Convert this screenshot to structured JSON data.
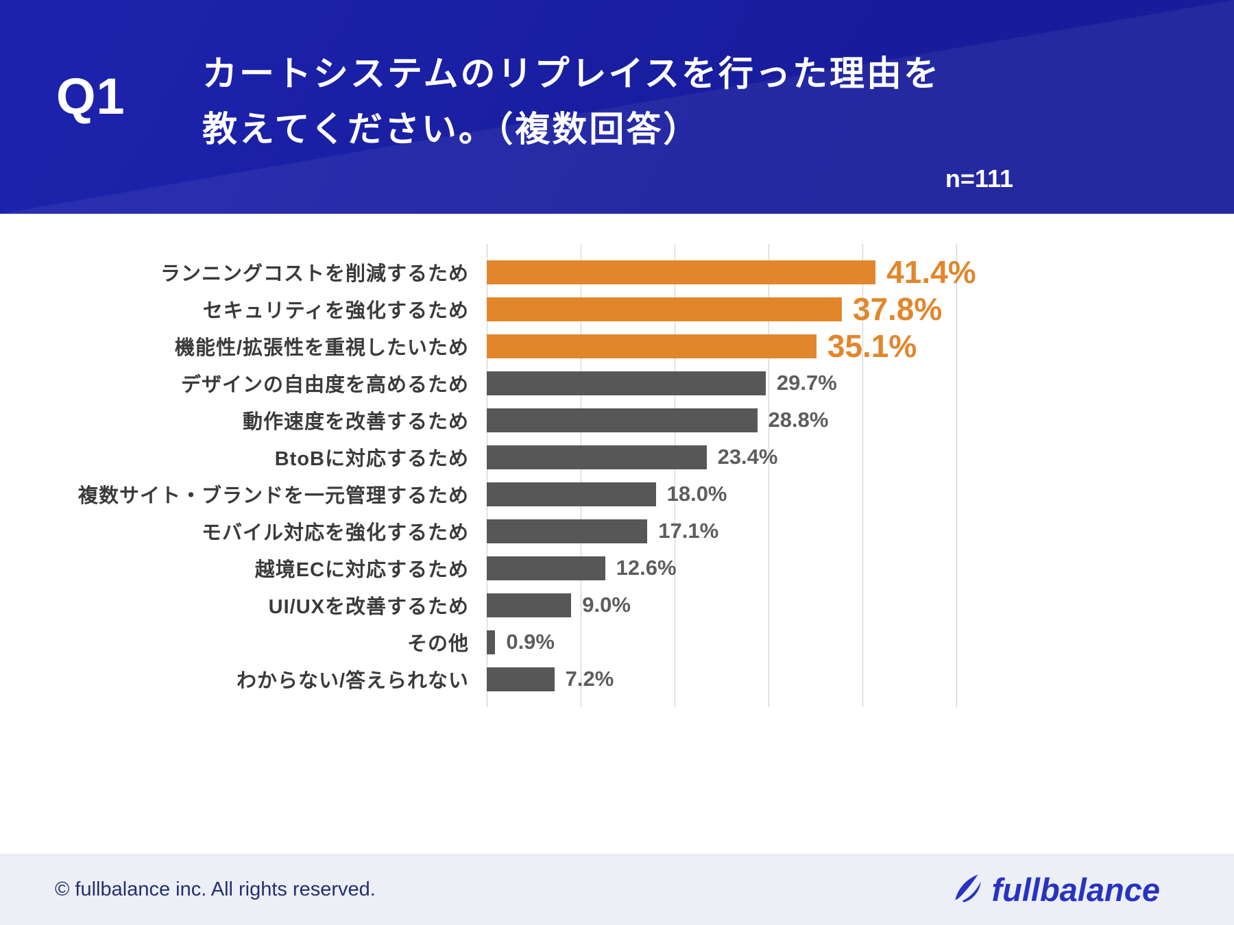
{
  "header": {
    "question_number": "Q1",
    "title_line1": "カートシステムのリプレイスを行った理由を",
    "title_line2": "教えてください。（複数回答）",
    "sample_size": "n=111"
  },
  "chart_data": {
    "type": "bar",
    "orientation": "horizontal",
    "title": "カートシステムのリプレイスを行った理由を教えてください。（複数回答）",
    "sample_size": 111,
    "categories": [
      "ランニングコストを削減するため",
      "セキュリティを強化するため",
      "機能性/拡張性を重視したいため",
      "デザインの自由度を高めるため",
      "動作速度を改善するため",
      "BtoBに対応するため",
      "複数サイト・ブランドを一元管理するため",
      "モバイル対応を強化するため",
      "越境ECに対応するため",
      "UI/UXを改善するため",
      "その他",
      "わからない/答えられない"
    ],
    "values": [
      41.4,
      37.8,
      35.1,
      29.7,
      28.8,
      23.4,
      18.0,
      17.1,
      12.6,
      9.0,
      0.9,
      7.2
    ],
    "value_labels": [
      "41.4%",
      "37.8%",
      "35.1%",
      "29.7%",
      "28.8%",
      "23.4%",
      "18.0%",
      "17.1%",
      "12.6%",
      "9.0%",
      "0.9%",
      "7.2%"
    ],
    "highlight_count": 3,
    "colors": {
      "highlight": "#e2862b",
      "default": "#575757",
      "value_highlight": "#e2862b",
      "value_default": "#5d5d5d",
      "header_background": "#1b20a6",
      "gridline": "#cccccc"
    },
    "xlim": [
      0,
      50
    ],
    "gridline_interval": 10,
    "grid": true,
    "legend": false
  },
  "footer": {
    "copyright": "© fullbalance inc. All rights reserved.",
    "logo_text": "fullbalance"
  }
}
